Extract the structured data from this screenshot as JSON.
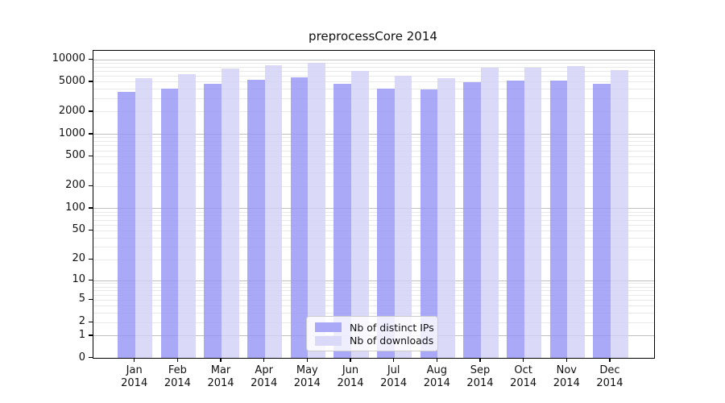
{
  "title": "preprocessCore 2014",
  "legend": {
    "items": [
      {
        "label": "Nb of distinct IPs",
        "color": "#a9a9f8"
      },
      {
        "label": "Nb of downloads",
        "color": "#dadaf8"
      }
    ]
  },
  "x_axis": {
    "months": [
      "Jan",
      "Feb",
      "Mar",
      "Apr",
      "May",
      "Jun",
      "Jul",
      "Aug",
      "Sep",
      "Oct",
      "Nov",
      "Dec"
    ],
    "year": "2014"
  },
  "y_axis": {
    "tick_values": [
      0,
      1,
      2,
      5,
      10,
      20,
      50,
      100,
      200,
      500,
      1000,
      2000,
      5000,
      10000
    ],
    "major_gridline_values": [
      1,
      10,
      100,
      1000,
      10000
    ]
  },
  "colors": {
    "distinct_ips_bar": "#a9a9f8",
    "downloads_bar": "#dadaf8",
    "distinct_ips_bar_rgba": "rgba(148,148,246,0.8)",
    "downloads_bar_rgba": "rgba(209,209,246,0.8)",
    "major_grid": "#c0c0c0",
    "minor_grid": "#e9e9e9"
  },
  "chart_data": {
    "type": "bar",
    "title": "preprocessCore 2014",
    "categories": [
      "Jan 2014",
      "Feb 2014",
      "Mar 2014",
      "Apr 2014",
      "May 2014",
      "Jun 2014",
      "Jul 2014",
      "Aug 2014",
      "Sep 2014",
      "Oct 2014",
      "Nov 2014",
      "Dec 2014"
    ],
    "series": [
      {
        "name": "Nb of distinct IPs",
        "values": [
          3700,
          4100,
          4800,
          5400,
          5800,
          4700,
          4100,
          4000,
          5000,
          5200,
          5300,
          4800
        ]
      },
      {
        "name": "Nb of downloads",
        "values": [
          5700,
          6400,
          7600,
          8400,
          9100,
          7100,
          6100,
          5700,
          7800,
          7900,
          8300,
          7200
        ]
      }
    ],
    "xlabel": "",
    "ylabel": "",
    "yscale": "log1p",
    "y_ticks": [
      0,
      1,
      2,
      5,
      10,
      20,
      50,
      100,
      200,
      500,
      1000,
      2000,
      5000,
      10000
    ],
    "ylim": [
      0,
      13000
    ],
    "grid": "on",
    "legend_position": "lower center"
  }
}
